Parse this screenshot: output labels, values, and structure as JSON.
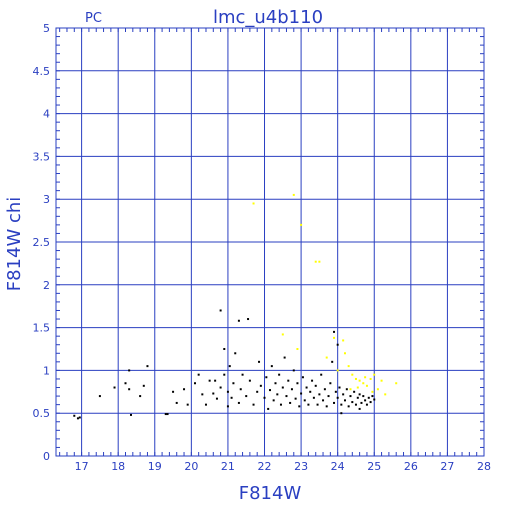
{
  "chart_data": {
    "type": "scatter",
    "title": "lmc_u4b110",
    "corner_label": "PC",
    "xlabel": "F814W",
    "ylabel": "F814W  chi",
    "xlim": [
      16.3,
      28
    ],
    "ylim": [
      0,
      5
    ],
    "x_ticks": [
      "17",
      "18",
      "19",
      "20",
      "21",
      "22",
      "23",
      "24",
      "25",
      "26",
      "27",
      "28"
    ],
    "y_ticks": [
      "0",
      "0.5",
      "1",
      "1.5",
      "2",
      "2.5",
      "3",
      "3.5",
      "4",
      "4.5",
      "5"
    ],
    "grid": true,
    "colors": {
      "axes": "#2a3fc1",
      "black_points": "#000000",
      "yellow_points": "#ffff00",
      "background": "#ffffff"
    },
    "series": [
      {
        "color": "black",
        "points": [
          [
            16.8,
            0.47
          ],
          [
            16.9,
            0.44
          ],
          [
            16.95,
            0.45
          ],
          [
            17.5,
            0.7
          ],
          [
            17.9,
            0.8
          ],
          [
            18.2,
            0.85
          ],
          [
            18.3,
            1.0
          ],
          [
            18.3,
            0.78
          ],
          [
            18.35,
            0.48
          ],
          [
            18.6,
            0.7
          ],
          [
            18.7,
            0.82
          ],
          [
            18.8,
            1.05
          ],
          [
            19.3,
            0.49
          ],
          [
            19.35,
            0.49
          ],
          [
            19.5,
            0.75
          ],
          [
            19.6,
            0.62
          ],
          [
            19.8,
            0.78
          ],
          [
            19.9,
            0.6
          ],
          [
            20.1,
            0.85
          ],
          [
            20.2,
            0.95
          ],
          [
            20.3,
            0.72
          ],
          [
            20.4,
            0.6
          ],
          [
            20.5,
            0.88
          ],
          [
            20.6,
            0.73
          ],
          [
            20.65,
            0.88
          ],
          [
            20.7,
            0.67
          ],
          [
            20.8,
            0.8
          ],
          [
            20.9,
            0.95
          ],
          [
            20.9,
            1.25
          ],
          [
            21.0,
            0.58
          ],
          [
            21.0,
            0.75
          ],
          [
            21.05,
            1.05
          ],
          [
            21.1,
            0.68
          ],
          [
            21.15,
            0.85
          ],
          [
            21.2,
            1.2
          ],
          [
            21.3,
            0.62
          ],
          [
            21.35,
            0.78
          ],
          [
            21.4,
            0.95
          ],
          [
            21.5,
            0.7
          ],
          [
            21.55,
            1.6
          ],
          [
            21.6,
            0.88
          ],
          [
            21.7,
            0.6
          ],
          [
            21.8,
            0.75
          ],
          [
            21.85,
            1.1
          ],
          [
            21.9,
            0.82
          ],
          [
            22.0,
            0.68
          ],
          [
            22.05,
            0.92
          ],
          [
            22.1,
            0.55
          ],
          [
            22.15,
            0.77
          ],
          [
            22.2,
            1.05
          ],
          [
            22.25,
            0.65
          ],
          [
            22.3,
            0.85
          ],
          [
            22.35,
            0.72
          ],
          [
            22.4,
            0.95
          ],
          [
            22.45,
            0.6
          ],
          [
            22.5,
            0.8
          ],
          [
            22.55,
            1.15
          ],
          [
            22.6,
            0.7
          ],
          [
            22.65,
            0.88
          ],
          [
            22.7,
            0.62
          ],
          [
            22.75,
            0.78
          ],
          [
            22.8,
            1.0
          ],
          [
            22.85,
            0.67
          ],
          [
            22.9,
            0.85
          ],
          [
            22.95,
            0.58
          ],
          [
            23.0,
            0.73
          ],
          [
            23.05,
            0.92
          ],
          [
            23.1,
            0.65
          ],
          [
            23.15,
            0.8
          ],
          [
            23.2,
            0.6
          ],
          [
            23.25,
            0.75
          ],
          [
            23.3,
            0.88
          ],
          [
            23.35,
            0.68
          ],
          [
            23.4,
            0.82
          ],
          [
            23.45,
            0.6
          ],
          [
            23.5,
            0.72
          ],
          [
            23.55,
            0.95
          ],
          [
            23.6,
            0.65
          ],
          [
            23.65,
            0.78
          ],
          [
            23.7,
            0.58
          ],
          [
            23.75,
            0.7
          ],
          [
            23.8,
            0.85
          ],
          [
            23.85,
            1.1
          ],
          [
            23.9,
            0.62
          ],
          [
            23.95,
            0.75
          ],
          [
            24.0,
            0.68
          ],
          [
            24.05,
            0.8
          ],
          [
            24.1,
            0.6
          ],
          [
            24.15,
            0.72
          ],
          [
            24.2,
            0.65
          ],
          [
            24.25,
            0.78
          ],
          [
            24.3,
            0.58
          ],
          [
            24.35,
            0.7
          ],
          [
            24.4,
            0.63
          ],
          [
            24.45,
            0.75
          ],
          [
            24.5,
            0.6
          ],
          [
            24.55,
            0.68
          ],
          [
            24.6,
            0.72
          ],
          [
            24.65,
            0.62
          ],
          [
            24.7,
            0.7
          ],
          [
            24.75,
            0.65
          ],
          [
            24.8,
            0.6
          ],
          [
            24.85,
            0.68
          ],
          [
            24.9,
            0.63
          ],
          [
            24.95,
            0.7
          ],
          [
            25.0,
            0.66
          ],
          [
            23.9,
            1.45
          ],
          [
            24.0,
            1.3
          ],
          [
            20.8,
            1.7
          ],
          [
            21.3,
            1.58
          ],
          [
            24.1,
            0.5
          ],
          [
            24.6,
            0.55
          ]
        ]
      },
      {
        "color": "yellow",
        "points": [
          [
            21.7,
            2.95
          ],
          [
            22.8,
            3.05
          ],
          [
            23.0,
            2.7
          ],
          [
            23.4,
            2.27
          ],
          [
            23.5,
            2.27
          ],
          [
            22.5,
            1.42
          ],
          [
            23.9,
            1.38
          ],
          [
            24.15,
            1.35
          ],
          [
            24.2,
            1.2
          ],
          [
            24.3,
            1.05
          ],
          [
            24.4,
            0.95
          ],
          [
            24.5,
            0.9
          ],
          [
            24.6,
            0.88
          ],
          [
            24.7,
            0.85
          ],
          [
            24.8,
            0.82
          ],
          [
            24.9,
            0.9
          ],
          [
            25.0,
            0.95
          ],
          [
            25.1,
            0.78
          ],
          [
            25.3,
            0.72
          ],
          [
            25.6,
            0.85
          ],
          [
            24.35,
            0.78
          ],
          [
            24.55,
            0.8
          ],
          [
            24.75,
            0.92
          ],
          [
            24.95,
            0.75
          ],
          [
            25.2,
            0.88
          ],
          [
            22.9,
            1.25
          ],
          [
            23.7,
            1.15
          ],
          [
            24.0,
            1.0
          ]
        ]
      }
    ]
  }
}
